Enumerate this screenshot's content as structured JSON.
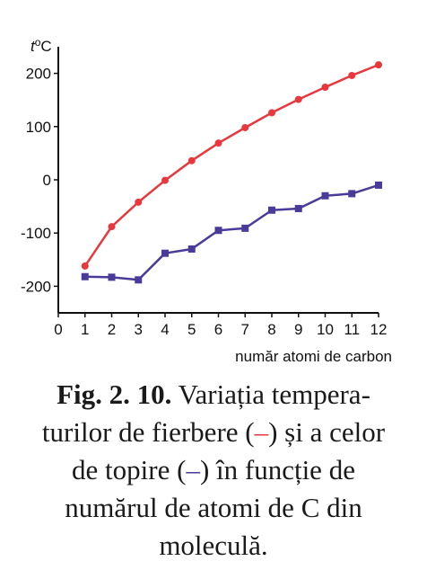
{
  "chart_data": {
    "type": "line",
    "x": [
      1,
      2,
      3,
      4,
      5,
      6,
      7,
      8,
      9,
      10,
      11,
      12
    ],
    "series": [
      {
        "values": [
          -162,
          -88,
          -42,
          -1,
          36,
          69,
          98,
          126,
          151,
          174,
          196,
          216
        ],
        "color": "#e8383d",
        "marker": "circle"
      },
      {
        "values": [
          -182,
          -183,
          -188,
          -138,
          -130,
          -95,
          -91,
          -57,
          -54,
          -30,
          -26,
          -10
        ],
        "color": "#4a3a9a",
        "marker": "square"
      }
    ],
    "xlim": [
      0,
      12
    ],
    "ylim": [
      -250,
      250
    ],
    "x_ticks": [
      "0",
      "1",
      "2",
      "3",
      "4",
      "5",
      "6",
      "7",
      "8",
      "9",
      "10",
      "11",
      "12"
    ],
    "y_ticks": [
      "200",
      "100",
      "0",
      "-100",
      "-200"
    ],
    "y_tick_values": [
      200,
      100,
      0,
      -100,
      -200
    ],
    "ylabel_t": "t",
    "ylabel_unit": "°C",
    "xlabel": "număr atomi de carbon",
    "grid": false
  },
  "caption": {
    "fig_number": "Fig. 2. 10.",
    "text1": " Variația tempera-",
    "text2a": "turilor de fierbere (",
    "dash1": "–",
    "text2b": ") și a celor",
    "text3a": "de topire (",
    "dash2": "–",
    "text3b": ") în funcție de",
    "text4": "numărul de atomi de C din",
    "text5": "moleculă."
  }
}
